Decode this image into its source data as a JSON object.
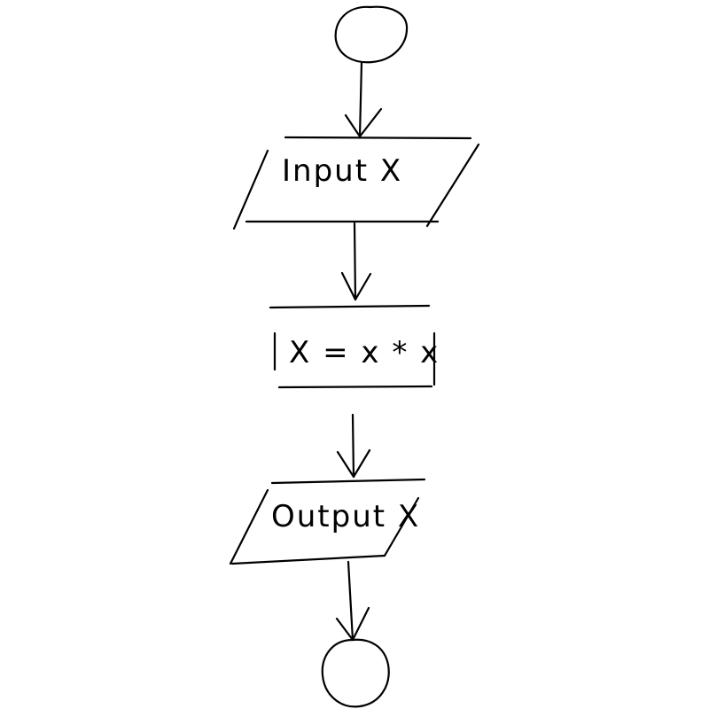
{
  "flowchart": {
    "start": {
      "shape": "terminator"
    },
    "input": {
      "shape": "parallelogram",
      "label": "Input X"
    },
    "process": {
      "shape": "rectangle",
      "label": "X = x * x"
    },
    "output": {
      "shape": "parallelogram",
      "label": "Output X"
    },
    "end": {
      "shape": "terminator"
    }
  },
  "colors": {
    "ink": "#000000",
    "background": "#ffffff"
  }
}
